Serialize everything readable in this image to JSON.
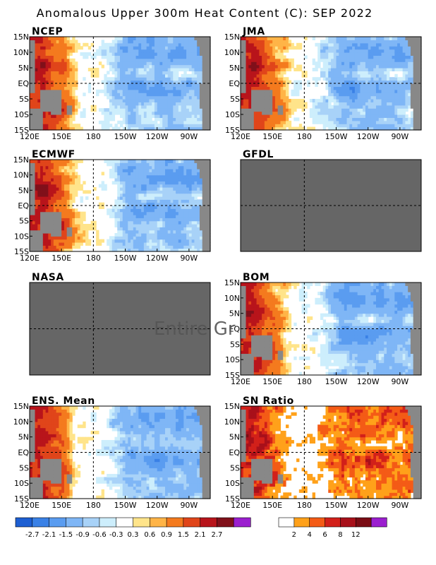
{
  "title": "Anomalous Upper 300m Heat Content (C): SEP 2022",
  "overlay_text": "Entire Gr",
  "axes": {
    "x_ticks": [
      "120E",
      "150E",
      "180",
      "150W",
      "120W",
      "90W"
    ],
    "x_tick_values": [
      120,
      150,
      180,
      210,
      240,
      270
    ],
    "y_ticks": [
      "15N",
      "10N",
      "5N",
      "EQ",
      "5S",
      "10S",
      "15S"
    ],
    "y_tick_values": [
      15,
      10,
      5,
      0,
      -5,
      -10,
      -15
    ],
    "lon_range": [
      120,
      290
    ],
    "lat_range": [
      -15,
      15
    ],
    "dashed_lon": 180,
    "dashed_lat": 0
  },
  "colors": {
    "missing": "#666666",
    "land": "#888888",
    "anomaly_scale": [
      "#1d5fd2",
      "#3a81e6",
      "#5a9cf0",
      "#7fb6f6",
      "#a8d2f8",
      "#cdeefc",
      "#ffffff",
      "#ffe48a",
      "#ffb447",
      "#f47a1e",
      "#e0451a",
      "#b8141b",
      "#80101a",
      "#9b1fcf"
    ],
    "sn_scale": [
      "#ffffff",
      "#ffa11a",
      "#f45b16",
      "#d2201a",
      "#a8101a",
      "#7a0c14",
      "#9b1fcf"
    ]
  },
  "colorbars": {
    "anomaly_labels": [
      "-2.7",
      "-2.1",
      "-1.5",
      "-0.9",
      "-0.6",
      "-0.3",
      "0.3",
      "0.6",
      "0.9",
      "1.5",
      "2.1",
      "2.7"
    ],
    "sn_labels": [
      "2",
      "4",
      "6",
      "8",
      "12"
    ]
  },
  "chart_data": [
    {
      "type": "heatmap",
      "title": "NCEP",
      "status": "data",
      "variable": "heat content anomaly (C)",
      "warm_pool_max": 2.7,
      "central_east_min": -1.5
    },
    {
      "type": "heatmap",
      "title": "JMA",
      "status": "data",
      "variable": "heat content anomaly (C)",
      "warm_pool_max": 2.7,
      "central_east_min": -1.5
    },
    {
      "type": "heatmap",
      "title": "ECMWF",
      "status": "data",
      "variable": "heat content anomaly (C)",
      "warm_pool_max": 2.7,
      "central_east_min": -1.5
    },
    {
      "type": "heatmap",
      "title": "GFDL",
      "status": "missing"
    },
    {
      "type": "heatmap",
      "title": "NASA",
      "status": "missing"
    },
    {
      "type": "heatmap",
      "title": "BOM",
      "status": "data",
      "variable": "heat content anomaly (C)",
      "warm_pool_max": 2.7,
      "central_east_min": -1.5
    },
    {
      "type": "heatmap",
      "title": "ENS. Mean",
      "status": "data",
      "variable": "heat content anomaly (C)",
      "warm_pool_max": 2.7,
      "central_east_min": -1.5
    },
    {
      "type": "heatmap",
      "title": "SN Ratio",
      "status": "data",
      "variable": "signal to noise ratio",
      "max": 12
    }
  ]
}
